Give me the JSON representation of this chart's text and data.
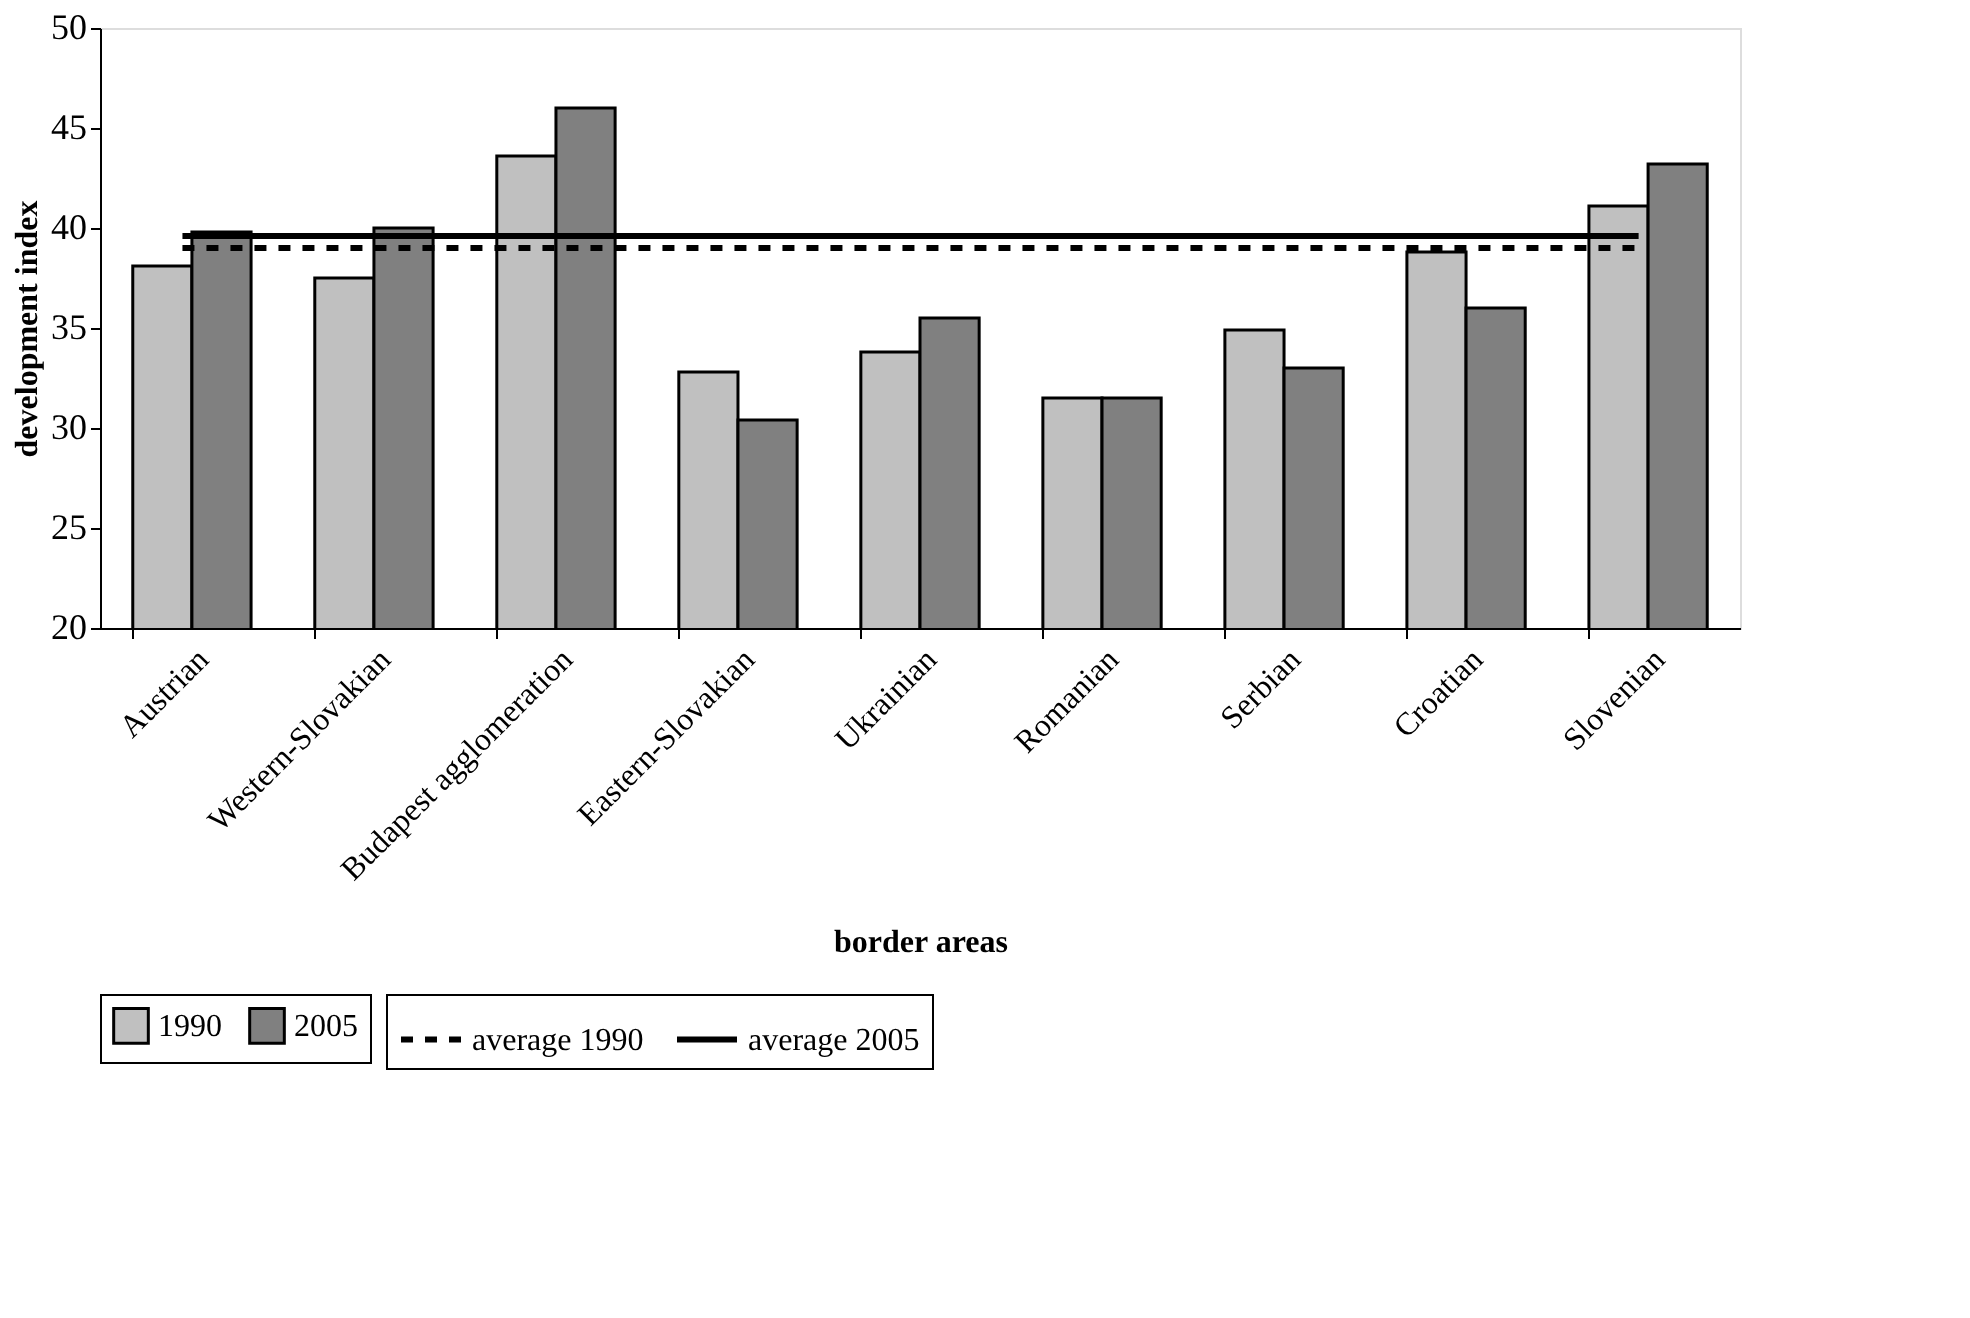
{
  "chart_data": {
    "type": "bar",
    "xlabel": "border areas",
    "ylabel": "development index",
    "categories": [
      "Austrian",
      "Western-Slovakian",
      "Budapest agglomeration",
      "Eastern-Slovakian",
      "Ukrainian",
      "Romanian",
      "Serbian",
      "Croatian",
      "Slovenian"
    ],
    "series": [
      {
        "name": "1990",
        "color": "#c0c0c0",
        "values": [
          38.1,
          37.5,
          43.6,
          32.8,
          33.8,
          31.5,
          34.9,
          38.8,
          41.1
        ]
      },
      {
        "name": "2005",
        "color": "#808080",
        "values": [
          39.8,
          40.0,
          46.0,
          30.4,
          35.5,
          31.5,
          33.0,
          36.0,
          43.2
        ]
      },
      {
        "name": "average 1990",
        "type": "line",
        "line_style": "dashed",
        "color": "#000000",
        "values": [
          39.0,
          39.0,
          39.0,
          39.0,
          39.0,
          39.0,
          39.0,
          39.0,
          39.0
        ]
      },
      {
        "name": "average 2005",
        "type": "line",
        "line_style": "solid",
        "color": "#000000",
        "values": [
          39.6,
          39.6,
          39.6,
          39.6,
          39.6,
          39.6,
          39.6,
          39.6,
          39.6
        ]
      }
    ],
    "ylim": [
      20,
      50
    ],
    "yticks": [
      20,
      25,
      30,
      35,
      40,
      45,
      50
    ],
    "grid": false,
    "legend": "bottom"
  }
}
